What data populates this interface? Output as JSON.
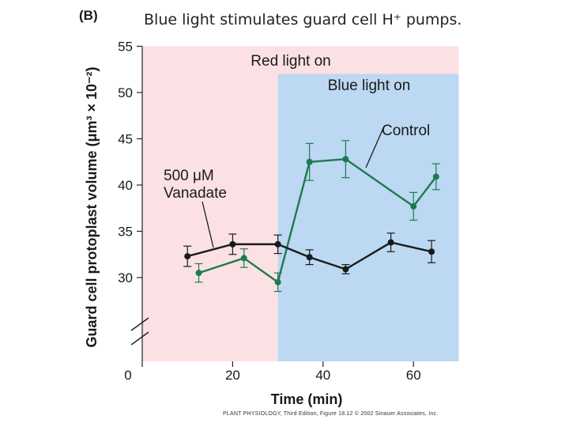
{
  "slide_title": "Blue light stimulates guard cell H⁺ pumps.",
  "panel_label": "(B)",
  "credit": "PLANT PHYSIOLOGY, Third Edition, Figure 18.12 © 2002 Sinauer Associates, Inc.",
  "chart_data": {
    "type": "line",
    "xlabel": "Time (min)",
    "ylabel": "Guard cell protoplast volume (μm³ × 10⁻²)",
    "xlim": [
      0,
      70
    ],
    "ylim": [
      25,
      55
    ],
    "x_ticks": [
      0,
      20,
      40,
      60
    ],
    "x_tick_labels": [
      "0",
      "20",
      "40",
      "60"
    ],
    "y_ticks": [
      30,
      35,
      40,
      45,
      50,
      55
    ],
    "y_tick_labels": [
      "30",
      "35",
      "40",
      "45",
      "50",
      "55"
    ],
    "axis_break": true,
    "regions": [
      {
        "label": "Red light on",
        "x_start": 0,
        "x_end": 70,
        "y_top": 55,
        "color": "#fbe1e4"
      },
      {
        "label": "Blue light on",
        "x_start": 30,
        "x_end": 70,
        "y_top": 52,
        "color": "#bcd8f2"
      }
    ],
    "series": [
      {
        "name": "Control",
        "color": "#1e7a4e",
        "x": [
          12.5,
          22.5,
          30,
          37,
          45,
          60,
          65
        ],
        "y": [
          30.5,
          32.1,
          29.5,
          42.5,
          42.8,
          37.7,
          40.9
        ],
        "err": [
          1.0,
          1.0,
          1.0,
          2.0,
          2.0,
          1.5,
          1.4
        ]
      },
      {
        "name": "500 μM Vanadate",
        "color": "#1a1a1a",
        "x": [
          10,
          20,
          30,
          37,
          45,
          55,
          64
        ],
        "y": [
          32.3,
          33.6,
          33.6,
          32.2,
          30.9,
          33.8,
          32.8
        ],
        "err": [
          1.1,
          1.1,
          1.0,
          0.8,
          0.5,
          1.0,
          1.2
        ]
      }
    ],
    "annotations": [
      {
        "text": "Control",
        "series": "Control"
      },
      {
        "text": "500 μM",
        "series": "500 μM Vanadate"
      },
      {
        "text": "Vanadate",
        "series": "500 μM Vanadate"
      }
    ]
  }
}
